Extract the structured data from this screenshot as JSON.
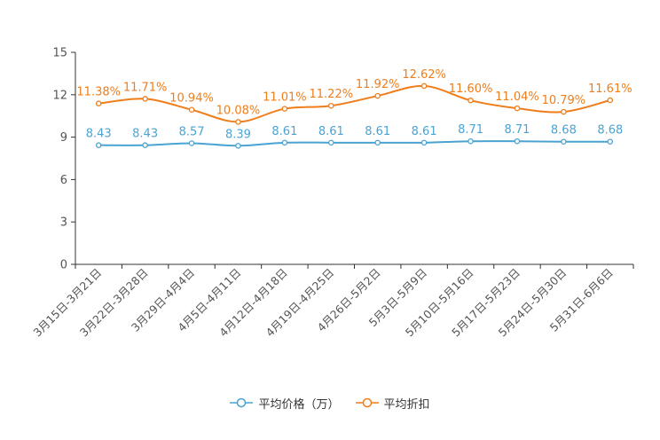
{
  "chart_data": {
    "type": "line",
    "categories": [
      "3月15日-3月21日",
      "3月22日-3月28日",
      "3月29日-4月4日",
      "4月5日-4月11日",
      "4月12日-4月18日",
      "4月19日-4月25日",
      "4月26日-5月2日",
      "5月3日-5月9日",
      "5月10日-5月16日",
      "5月17日-5月23日",
      "5月24日-5月30日",
      "5月31日-6月6日"
    ],
    "ylim": [
      0,
      15
    ],
    "yticks": [
      "0",
      "3",
      "6",
      "9",
      "12",
      "15"
    ],
    "series": [
      {
        "name": "平均价格（万）",
        "color": "#4aa3d2",
        "values": [
          8.43,
          8.43,
          8.57,
          8.39,
          8.61,
          8.61,
          8.61,
          8.61,
          8.71,
          8.71,
          8.68,
          8.68
        ],
        "labels": [
          "8.43",
          "8.43",
          "8.57",
          "8.39",
          "8.61",
          "8.61",
          "8.61",
          "8.61",
          "8.71",
          "8.71",
          "8.68",
          "8.68"
        ]
      },
      {
        "name": "平均折扣",
        "color": "#ef7d1a",
        "values": [
          11.38,
          11.71,
          10.94,
          10.08,
          11.01,
          11.22,
          11.92,
          12.62,
          11.6,
          11.04,
          10.79,
          11.61
        ],
        "labels": [
          "11.38%",
          "11.71%",
          "10.94%",
          "10.08%",
          "11.01%",
          "11.22%",
          "11.92%",
          "12.62%",
          "11.60%",
          "11.04%",
          "10.79%",
          "11.61%"
        ]
      }
    ],
    "legend_position": "bottom"
  }
}
